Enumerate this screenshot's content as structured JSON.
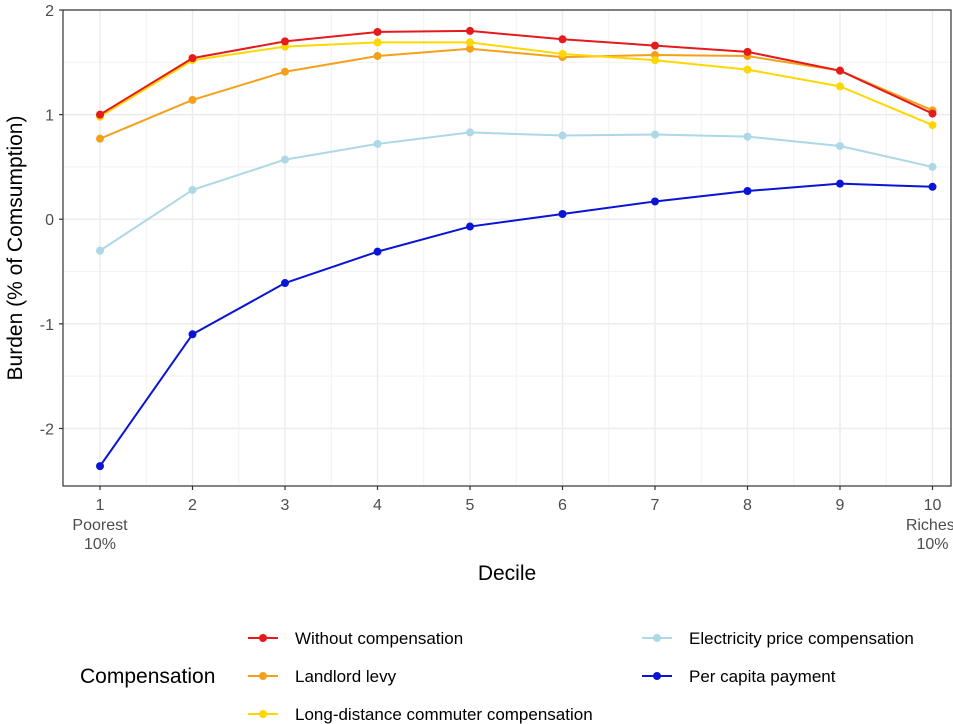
{
  "chart_data": {
    "type": "line",
    "xlabel": "Decile",
    "ylabel": "Burden (% of Comsumption)",
    "x": [
      1,
      2,
      3,
      4,
      5,
      6,
      7,
      8,
      9,
      10
    ],
    "x_tick_labels": [
      "1",
      "2",
      "3",
      "4",
      "5",
      "6",
      "7",
      "8",
      "9",
      "10"
    ],
    "x_sub_labels": {
      "first": [
        "Poorest",
        "10%"
      ],
      "last": [
        "Richest",
        "10%"
      ]
    },
    "xlim": [
      0.6,
      10.2
    ],
    "ylim": [
      -2.55,
      2.0
    ],
    "y_ticks": [
      -2,
      -1,
      0,
      1,
      2
    ],
    "y_tick_labels": [
      "-2",
      "-1",
      "0",
      "1",
      "2"
    ],
    "grid": true,
    "legend": {
      "title": "Compensation",
      "placement": "bottom"
    },
    "series": [
      {
        "name": "Without compensation",
        "color": "#e41a1c",
        "values": [
          1.0,
          1.54,
          1.7,
          1.79,
          1.8,
          1.72,
          1.66,
          1.6,
          1.42,
          1.01
        ]
      },
      {
        "name": "Landlord levy",
        "color": "#f5a01a",
        "values": [
          0.77,
          1.14,
          1.41,
          1.56,
          1.63,
          1.55,
          1.57,
          1.56,
          1.42,
          1.04
        ]
      },
      {
        "name": "Long-distance commuter compensation",
        "color": "#ffd700",
        "values": [
          0.98,
          1.52,
          1.65,
          1.69,
          1.69,
          1.58,
          1.52,
          1.43,
          1.27,
          0.9
        ]
      },
      {
        "name": "Electricity price compensation",
        "color": "#add8e6",
        "values": [
          -0.3,
          0.28,
          0.57,
          0.72,
          0.83,
          0.8,
          0.81,
          0.79,
          0.7,
          0.5
        ]
      },
      {
        "name": "Per capita payment",
        "color": "#0a14d4",
        "values": [
          -2.36,
          -1.1,
          -0.61,
          -0.31,
          -0.07,
          0.05,
          0.17,
          0.27,
          0.34,
          0.31
        ]
      }
    ]
  }
}
